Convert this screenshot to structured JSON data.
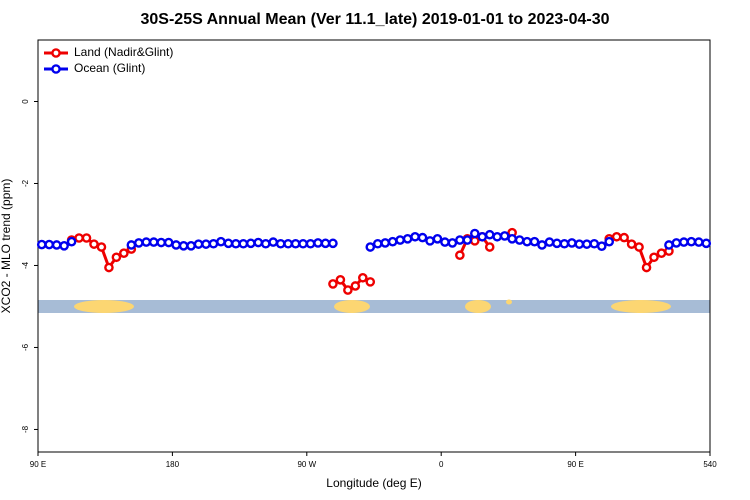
{
  "chart_data": {
    "type": "line",
    "title": "30S-25S Annual Mean (Ver 11.1_late)   2019-01-01 to 2023-04-30",
    "x_label": "Longitude (deg E)",
    "y_label": "XCO2 - MLO trend (ppm)",
    "x": [
      92.5,
      97.5,
      102.5,
      107.5,
      112.5,
      117.5,
      122.5,
      127.5,
      132.5,
      137.5,
      142.5,
      147.5,
      152.5,
      157.5,
      162.5,
      167.5,
      172.5,
      177.5,
      182.5,
      187.5,
      192.5,
      197.5,
      202.5,
      207.5,
      212.5,
      217.5,
      222.5,
      227.5,
      232.5,
      237.5,
      242.5,
      247.5,
      252.5,
      257.5,
      262.5,
      267.5,
      272.5,
      277.5,
      282.5,
      287.5,
      292.5,
      297.5,
      302.5,
      307.5,
      312.5,
      317.5,
      322.5,
      327.5,
      332.5,
      337.5,
      342.5,
      347.5,
      352.5,
      357.5,
      362.5,
      367.5,
      372.5,
      377.5,
      382.5,
      387.5,
      392.5,
      397.5,
      402.5,
      407.5,
      412.5,
      417.5,
      422.5,
      427.5,
      432.5,
      437.5,
      442.5,
      447.5,
      452.5,
      457.5,
      462.5,
      467.5,
      472.5,
      477.5,
      482.5,
      487.5,
      492.5,
      497.5,
      502.5,
      507.5,
      512.5,
      517.5,
      522.5,
      527.5,
      532.5,
      537.5
    ],
    "series": [
      {
        "name": "Land (Nadir&Glint)",
        "color": "#ee0000",
        "values": [
          null,
          null,
          null,
          null,
          -3.38,
          -3.33,
          -3.33,
          -3.48,
          -3.55,
          -4.05,
          -3.8,
          -3.7,
          -3.6,
          null,
          null,
          null,
          null,
          null,
          null,
          null,
          null,
          null,
          null,
          null,
          null,
          null,
          null,
          null,
          null,
          null,
          null,
          null,
          null,
          null,
          null,
          null,
          null,
          null,
          null,
          -4.45,
          -4.35,
          -4.6,
          -4.5,
          -4.3,
          -4.4,
          null,
          null,
          null,
          null,
          null,
          null,
          null,
          null,
          null,
          null,
          null,
          -3.75,
          -3.35,
          -3.4,
          -3.3,
          -3.55,
          null,
          null,
          -3.2,
          null,
          null,
          null,
          null,
          null,
          null,
          null,
          null,
          null,
          null,
          null,
          null,
          -3.35,
          -3.3,
          -3.32,
          -3.48,
          -3.55,
          -4.05,
          -3.8,
          -3.7,
          -3.65,
          null,
          null,
          null,
          null,
          null
        ]
      },
      {
        "name": "Ocean (Glint)",
        "color": "#0000ee",
        "values": [
          -3.49,
          -3.49,
          -3.5,
          -3.52,
          -3.42,
          null,
          null,
          null,
          null,
          null,
          null,
          null,
          -3.5,
          -3.45,
          -3.43,
          -3.43,
          -3.44,
          -3.44,
          -3.5,
          -3.52,
          -3.52,
          -3.48,
          -3.48,
          -3.47,
          -3.42,
          -3.46,
          -3.47,
          -3.47,
          -3.46,
          -3.44,
          -3.47,
          -3.43,
          -3.47,
          -3.47,
          -3.47,
          -3.47,
          -3.47,
          -3.45,
          -3.46,
          -3.46,
          null,
          null,
          null,
          null,
          -3.55,
          -3.47,
          -3.45,
          -3.42,
          -3.38,
          -3.35,
          -3.3,
          -3.32,
          -3.4,
          -3.35,
          -3.43,
          -3.45,
          -3.38,
          -3.38,
          -3.22,
          -3.3,
          -3.25,
          -3.3,
          -3.28,
          -3.35,
          -3.38,
          -3.42,
          -3.42,
          -3.5,
          -3.43,
          -3.46,
          -3.47,
          -3.45,
          -3.48,
          -3.48,
          -3.47,
          -3.53,
          -3.42,
          null,
          null,
          null,
          null,
          null,
          null,
          null,
          -3.5,
          -3.45,
          -3.43,
          -3.42,
          -3.43,
          -3.46
        ]
      }
    ],
    "xlim": [
      90,
      540
    ],
    "xticks": [
      {
        "value": 90,
        "label": "90 E"
      },
      180,
      {
        "value": 270,
        "label": "90 W"
      },
      {
        "value": 360,
        "label": "0"
      },
      {
        "value": 450,
        "label": "90 E"
      },
      540
    ],
    "ylim": [
      -8.55,
      1.5
    ],
    "yticks": [
      0,
      -2,
      -4,
      -6,
      -8
    ],
    "legend": "top-left"
  }
}
